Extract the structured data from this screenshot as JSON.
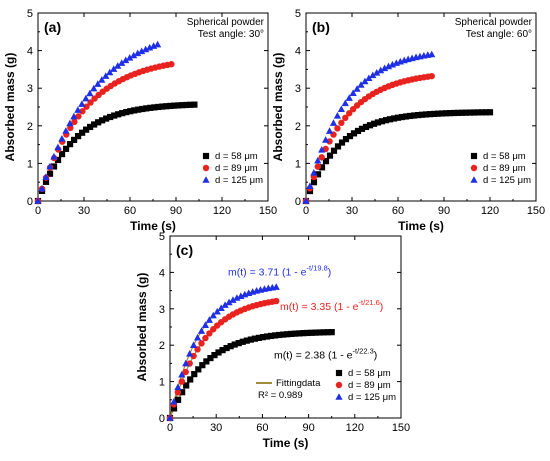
{
  "chart_data": [
    {
      "type": "scatter",
      "panel_label": "(a)",
      "annotation": [
        "Spherical powder",
        "Test angle: 30°"
      ],
      "xlabel": "Time (s)",
      "ylabel": "Absorbed mass (g)",
      "xlim": [
        0,
        150
      ],
      "ylim": [
        0,
        5
      ],
      "xticks": [
        "0",
        "30",
        "60",
        "90",
        "120",
        "150"
      ],
      "yticks": [
        "0",
        "1",
        "2",
        "3",
        "4",
        "5"
      ],
      "legend": {
        "position": "bottom-right",
        "entries": [
          "d = 58 μm",
          "d = 89 μm",
          "d = 125 μm"
        ]
      },
      "series": [
        {
          "name": "d = 58 μm",
          "marker": "square",
          "color": "#000000",
          "tau": 24,
          "amp": 2.6,
          "xmax": 102
        },
        {
          "name": "d = 89 μm",
          "marker": "circle",
          "color": "#e8231f",
          "tau": 30,
          "amp": 3.85,
          "xmax": 87
        },
        {
          "name": "d = 125 μm",
          "marker": "triangle",
          "color": "#1f2fe6",
          "tau": 36,
          "amp": 4.7,
          "xmax": 78
        }
      ]
    },
    {
      "type": "scatter",
      "panel_label": "(b)",
      "annotation": [
        "Spherical powder",
        "Test angle: 60°"
      ],
      "xlabel": "Time (s)",
      "ylabel": "Absorbed mass (g)",
      "xlim": [
        0,
        150
      ],
      "ylim": [
        0,
        5
      ],
      "xticks": [
        "0",
        "30",
        "60",
        "90",
        "120",
        "150"
      ],
      "yticks": [
        "0",
        "1",
        "2",
        "3",
        "4",
        "5"
      ],
      "legend": {
        "position": "bottom-right",
        "entries": [
          "d = 58 μm",
          "d = 89 μm",
          "d = 125 μm"
        ]
      },
      "series": [
        {
          "name": "d = 58 μm",
          "marker": "square",
          "color": "#000000",
          "tau": 22,
          "amp": 2.37,
          "xmax": 120
        },
        {
          "name": "d = 89 μm",
          "marker": "circle",
          "color": "#e8231f",
          "tau": 25,
          "amp": 3.45,
          "xmax": 82
        },
        {
          "name": "d = 125 μm",
          "marker": "triangle",
          "color": "#1f2fe6",
          "tau": 25,
          "amp": 4.05,
          "xmax": 82
        }
      ]
    },
    {
      "type": "scatter",
      "panel_label": "(c)",
      "xlabel": "Time (s)",
      "ylabel": "Absorbed mass (g)",
      "xlim": [
        0,
        150
      ],
      "ylim": [
        0,
        5
      ],
      "xticks": [
        "0",
        "30",
        "60",
        "90",
        "120",
        "150"
      ],
      "yticks": [
        "0",
        "1",
        "2",
        "3",
        "4",
        "5"
      ],
      "legend": {
        "position": "bottom-right",
        "entries": [
          "d = 58 μm",
          "d = 89 μm",
          "d = 125 μm"
        ]
      },
      "fit_legend": {
        "label": "Fittingdata",
        "r2": "R² = 0.989",
        "color": "#a08a3c"
      },
      "equations": [
        {
          "text": "m(t) = 3.71 (1 - e",
          "sup": "-t/19.8",
          "close": ")",
          "color": "#1f2fe6"
        },
        {
          "text": "m(t) = 3.35 (1 - e",
          "sup": "-t/21.6",
          "close": ")",
          "color": "#e8231f"
        },
        {
          "text": "m(t) = 2.38 (1 - e",
          "sup": "-t/22.3",
          "close": ")",
          "color": "#000000"
        }
      ],
      "series": [
        {
          "name": "d = 58 μm",
          "marker": "square",
          "color": "#000000",
          "tau": 22.3,
          "amp": 2.38,
          "xmax": 105
        },
        {
          "name": "d = 89 μm",
          "marker": "circle",
          "color": "#e8231f",
          "tau": 21.6,
          "amp": 3.35,
          "xmax": 69
        },
        {
          "name": "d = 125 μm",
          "marker": "triangle",
          "color": "#1f2fe6",
          "tau": 19.8,
          "amp": 3.71,
          "xmax": 69
        }
      ]
    }
  ]
}
